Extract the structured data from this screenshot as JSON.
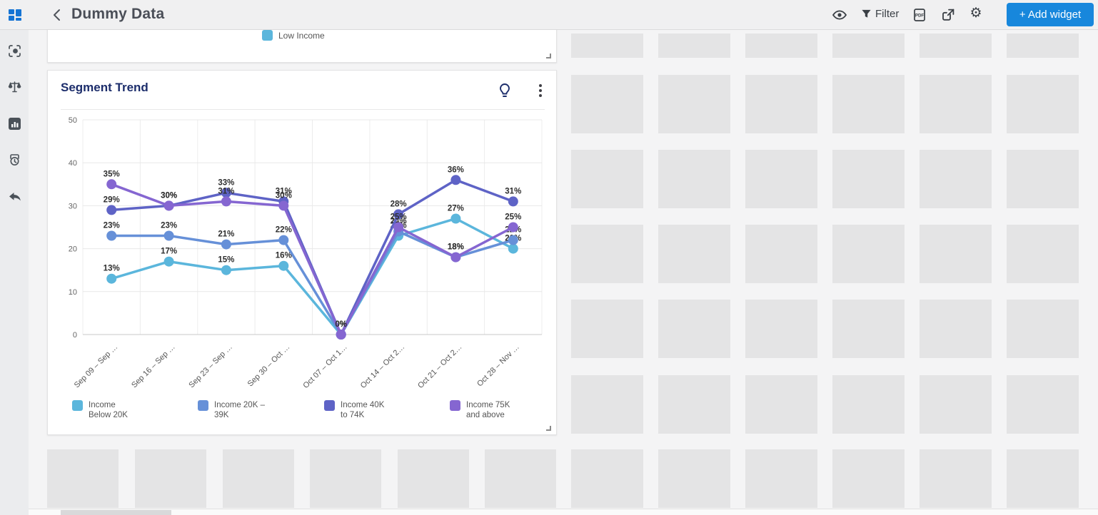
{
  "header": {
    "title": "Dummy Data",
    "filter_label": "Filter",
    "pdf_icon_text": "PDF",
    "add_widget_label": "+ Add widget",
    "accent_color": "#1787DC",
    "logo_color": "#1574D4"
  },
  "sidebar": {
    "icons": [
      "capture-icon",
      "scale-icon",
      "analytics-icon",
      "reports-icon",
      "back-arrow-icon"
    ],
    "active": "analytics-icon",
    "icon_color": "#4A5158"
  },
  "top_widget": {
    "legend": [
      {
        "label": "Low Income",
        "color": "#5BB6DC"
      }
    ]
  },
  "segment_trend": {
    "title": "Segment Trend",
    "title_color": "#1C2D6B",
    "legend": [
      {
        "line1": "Income",
        "line2": "Below 20K",
        "color": "#5BB6DC"
      },
      {
        "line1": "Income 20K –",
        "line2": "39K",
        "color": "#6690D8"
      },
      {
        "line1": "Income 40K",
        "line2": "to 74K",
        "color": "#5E63C6"
      },
      {
        "line1": "Income 75K",
        "line2": "and above",
        "color": "#8566D1"
      }
    ]
  },
  "chart_data": {
    "type": "line",
    "title": "Segment Trend",
    "categories": [
      "Sep 09 – Sep …",
      "Sep 16 – Sep …",
      "Sep 23 – Sep …",
      "Sep 30 – Oct …",
      "Oct 07 – Oct 1…",
      "Oct 14 – Oct 2…",
      "Oct 21 – Oct 2…",
      "Oct 28 – Nov …"
    ],
    "series": [
      {
        "name": "Income Below 20K",
        "color": "#5BB6DC",
        "values": [
          13,
          17,
          15,
          16,
          0,
          23,
          27,
          20
        ]
      },
      {
        "name": "Income 20K – 39K",
        "color": "#6690D8",
        "values": [
          23,
          23,
          21,
          22,
          0,
          24,
          18,
          22
        ]
      },
      {
        "name": "Income 40K to 74K",
        "color": "#5E63C6",
        "values": [
          29,
          30,
          33,
          31,
          0,
          28,
          36,
          31
        ]
      },
      {
        "name": "Income 75K and above",
        "color": "#8566D1",
        "values": [
          35,
          30,
          31,
          30,
          0,
          25,
          18,
          25
        ]
      }
    ],
    "ylim": [
      0,
      50
    ],
    "yticks": [
      0,
      10,
      20,
      30,
      40,
      50
    ],
    "data_label_suffix": "%",
    "grid": true,
    "legend_position": "bottom",
    "xlabel": "",
    "ylabel": ""
  }
}
